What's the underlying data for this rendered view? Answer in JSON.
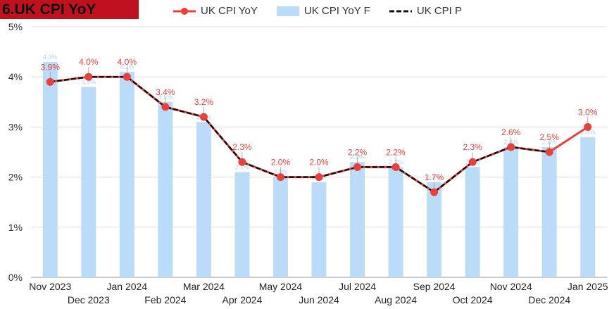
{
  "title": "6.UK CPI YoY",
  "colors": {
    "title_bg": "#c0111f",
    "actual": "#e8403a",
    "forecast": "#bbdcf8",
    "previous": "#111111"
  },
  "legend": {
    "actual": "UK CPI YoY",
    "forecast": "UK CPI YoY F",
    "previous": "UK CPI P"
  },
  "chart_data": {
    "type": "bar",
    "categories": [
      "Nov 2023",
      "Dec 2023",
      "Jan 2024",
      "Feb 2024",
      "Mar 2024",
      "Apr 2024",
      "May 2024",
      "Jun 2024",
      "Jul 2024",
      "Aug 2024",
      "Sep 2024",
      "Oct 2024",
      "Nov 2024",
      "Dec 2024",
      "Jan 2025"
    ],
    "ylim": [
      0,
      5
    ],
    "yticks": [
      "0%",
      "1%",
      "2%",
      "3%",
      "4%",
      "5%"
    ],
    "grid": true,
    "legend_position": "top",
    "series": [
      {
        "name": "UK CPI YoY F",
        "type": "bar",
        "values": [
          4.3,
          3.8,
          4.1,
          3.5,
          3.1,
          2.1,
          2.0,
          1.9,
          2.3,
          2.2,
          1.9,
          2.2,
          2.6,
          2.6,
          2.8
        ],
        "labels": [
          "4.3%",
          "3.8%",
          "4.1%",
          "3.5%",
          "3.1%",
          "2.1%",
          "2.0%",
          "1.9%",
          "2.3%",
          "2.2%",
          "1.9%",
          "2.2%",
          "2.6%",
          "2.6%",
          "2.8%"
        ]
      },
      {
        "name": "UK CPI YoY",
        "type": "line",
        "values": [
          3.9,
          4.0,
          4.0,
          3.4,
          3.2,
          2.3,
          2.0,
          2.0,
          2.2,
          2.2,
          1.7,
          2.3,
          2.6,
          2.5,
          3.0
        ],
        "labels": [
          "3.9%",
          "4.0%",
          "4.0%",
          "3.4%",
          "3.2%",
          "2.3%",
          "2.0%",
          "2.0%",
          "2.2%",
          "2.2%",
          "1.7%",
          "2.3%",
          "2.6%",
          "2.5%",
          "3.0%"
        ]
      },
      {
        "name": "UK CPI P",
        "type": "line",
        "values": [
          3.9,
          4.0,
          4.0,
          3.4,
          3.2,
          2.3,
          2.0,
          2.0,
          2.2,
          2.2,
          1.7,
          2.3,
          2.6,
          2.5,
          null
        ]
      }
    ]
  }
}
